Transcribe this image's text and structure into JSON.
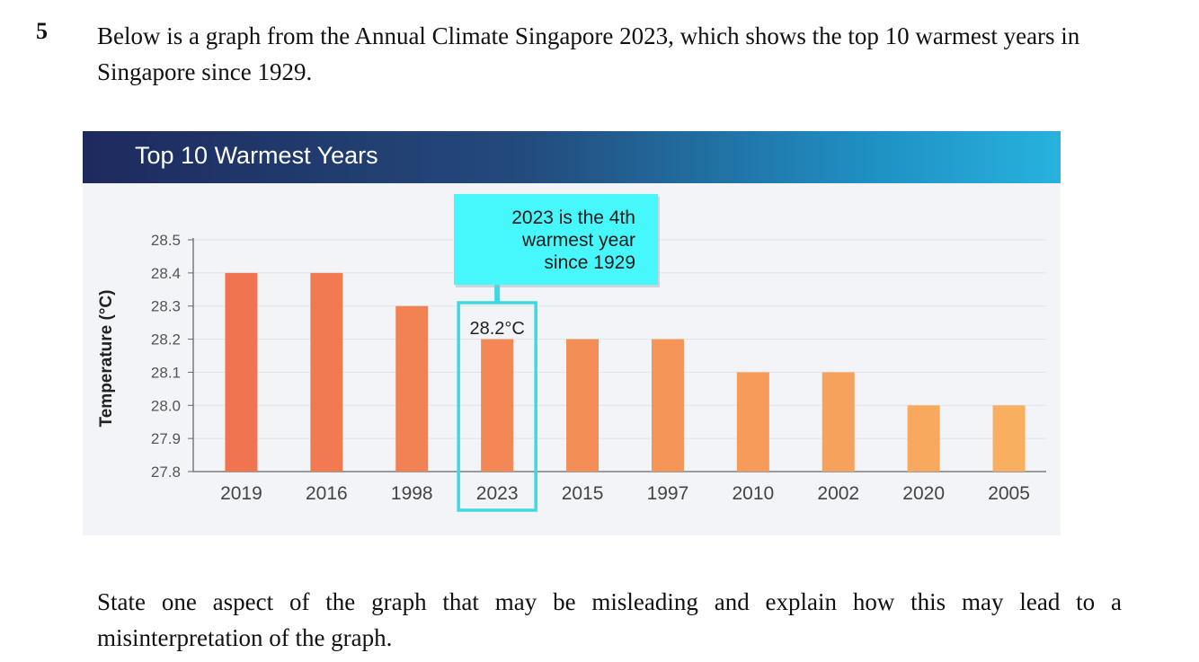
{
  "question": {
    "number": "5",
    "intro": "Below is a graph from the Annual Climate Singapore 2023, which shows the top 10 warmest years in Singapore since 1929.",
    "prompt": "State one aspect of the graph that may be misleading and explain how this may lead to a misinterpretation of the graph."
  },
  "chart_data": {
    "type": "bar",
    "title": "Top 10 Warmest Years",
    "xlabel": "",
    "ylabel": "Temperature (°C)",
    "ylim": [
      27.8,
      28.5
    ],
    "yticks": [
      "28.5",
      "28.4",
      "28.3",
      "28.2",
      "28.1",
      "28.0",
      "27.9",
      "27.8"
    ],
    "categories": [
      "2019",
      "2016",
      "1998",
      "2023",
      "2015",
      "1997",
      "2010",
      "2002",
      "2020",
      "2005"
    ],
    "values": [
      28.4,
      28.4,
      28.3,
      28.2,
      28.2,
      28.2,
      28.1,
      28.1,
      28.0,
      28.0
    ],
    "highlight": {
      "category": "2023",
      "value_label": "28.2°C",
      "callout_lines": [
        "2023 is the 4th",
        "warmest year",
        "since 1929"
      ]
    },
    "colors": {
      "bars": [
        "#f07450",
        "#f17a52",
        "#f28154",
        "#f38856",
        "#f48e57",
        "#f59558",
        "#f69b5a",
        "#f7a25c",
        "#f8a95e",
        "#f9af60"
      ],
      "callout": "#46f8fb",
      "highlight_box": "#3ed8e6",
      "grid": "#dfe3ea",
      "axis": "#666666"
    }
  }
}
